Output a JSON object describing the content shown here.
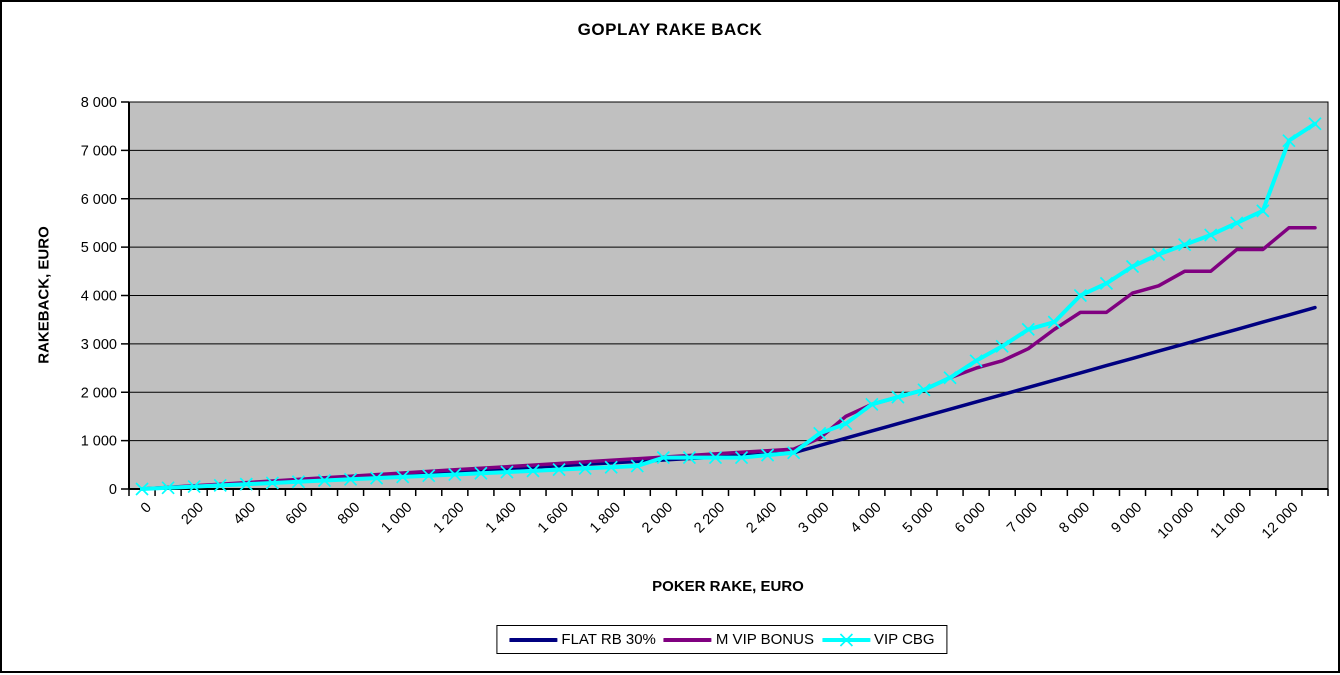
{
  "window": {
    "background": "#FFFFFF",
    "border_color": "#000000"
  },
  "chart_data": {
    "type": "line",
    "title": "GOPLAY RAKE BACK",
    "xlabel": "POKER RAKE, EURO",
    "ylabel": "RAKEBACK, EURO",
    "plot_background": "#C0C0C0",
    "gridlines": "horizontal",
    "gridline_color": "#000000",
    "ylim": [
      0,
      8000
    ],
    "ytick_step": 1000,
    "ytick_labels": [
      "0",
      "1 000",
      "2 000",
      "3 000",
      "4 000",
      "5 000",
      "6 000",
      "7 000",
      "8 000"
    ],
    "x_axis_type": "categorical",
    "x_categories": [
      0,
      100,
      200,
      300,
      400,
      500,
      600,
      700,
      800,
      900,
      1000,
      1100,
      1200,
      1300,
      1400,
      1500,
      1600,
      1700,
      1800,
      1900,
      2000,
      2100,
      2200,
      2300,
      2400,
      2500,
      3000,
      3500,
      4000,
      4500,
      5000,
      5500,
      6000,
      6500,
      7000,
      7500,
      8000,
      8500,
      9000,
      9500,
      10000,
      10500,
      11000,
      11500,
      12000,
      12500
    ],
    "x_tick_labels": [
      "0",
      "200",
      "400",
      "600",
      "800",
      "1 000",
      "1 200",
      "1 400",
      "1 600",
      "1 800",
      "2 000",
      "2 200",
      "2 400",
      "3 000",
      "4 000",
      "5 000",
      "6 000",
      "7 000",
      "8 000",
      "9 000",
      "10 000",
      "11 000",
      "12 000"
    ],
    "x_labels_every_nth_category": 2,
    "x_label_rotation_deg": -45,
    "legend_position": "bottom",
    "series": [
      {
        "name": "FLAT RB 30%",
        "color": "#000080",
        "marker": "none",
        "values": [
          0,
          30,
          60,
          90,
          120,
          150,
          180,
          210,
          240,
          270,
          300,
          330,
          360,
          390,
          420,
          450,
          480,
          510,
          540,
          570,
          600,
          630,
          660,
          690,
          720,
          750,
          900,
          1050,
          1200,
          1350,
          1500,
          1650,
          1800,
          1950,
          2100,
          2250,
          2400,
          2550,
          2700,
          2850,
          3000,
          3150,
          3300,
          3450,
          3600,
          3750
        ]
      },
      {
        "name": "M VIP BONUS",
        "color": "#800080",
        "marker": "none",
        "values": [
          0,
          33,
          66,
          99,
          132,
          165,
          198,
          231,
          264,
          297,
          330,
          363,
          396,
          429,
          462,
          495,
          528,
          561,
          594,
          627,
          660,
          693,
          726,
          759,
          792,
          825,
          1050,
          1500,
          1750,
          1900,
          2050,
          2300,
          2500,
          2650,
          2900,
          3300,
          3650,
          3650,
          4050,
          4200,
          4500,
          4500,
          4950,
          4950,
          5400,
          5400
        ]
      },
      {
        "name": "VIP CBG",
        "color": "#00FFFF",
        "marker": "x",
        "values": [
          0,
          25,
          50,
          75,
          100,
          125,
          150,
          175,
          200,
          225,
          250,
          275,
          300,
          325,
          350,
          375,
          400,
          425,
          450,
          475,
          650,
          650,
          650,
          650,
          700,
          750,
          1150,
          1350,
          1750,
          1900,
          2050,
          2300,
          2650,
          2950,
          3300,
          3450,
          4000,
          4250,
          4600,
          4850,
          5050,
          5250,
          5500,
          5750,
          7200,
          7550
        ]
      }
    ]
  }
}
